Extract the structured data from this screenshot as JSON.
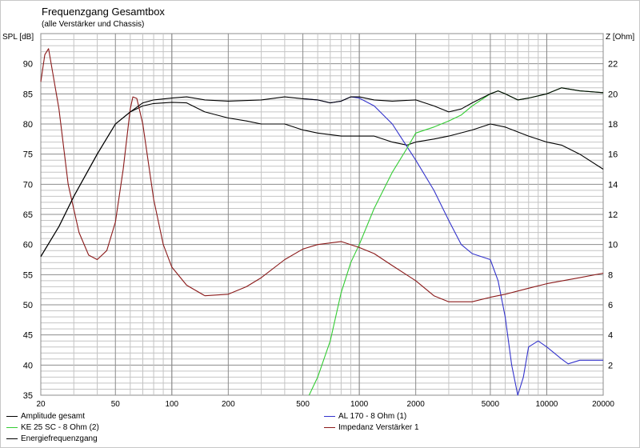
{
  "chart_data": {
    "type": "line",
    "title": "Frequenzgang Gesamtbox",
    "subtitle": "(alle Verstärker und Chassis)",
    "ylabel_left": "SPL [dB]",
    "ylabel_right": "Z [Ohm]",
    "xscale": "log",
    "xlim": [
      20,
      20000
    ],
    "ylim_left": [
      35,
      95
    ],
    "ylim_right": [
      0,
      24
    ],
    "x_ticks": [
      "20",
      "50",
      "100",
      "200",
      "500",
      "1000",
      "2000",
      "5000",
      "10000",
      "20000"
    ],
    "x_tick_values": [
      20,
      50,
      100,
      200,
      500,
      1000,
      2000,
      5000,
      10000,
      20000
    ],
    "y_left_ticks": [
      35,
      40,
      45,
      50,
      55,
      60,
      65,
      70,
      75,
      80,
      85,
      90
    ],
    "y_right_ticks": [
      2,
      4,
      6,
      8,
      10,
      12,
      14,
      16,
      18,
      20,
      22
    ],
    "grid": true,
    "series": [
      {
        "name": "Amplitude gesamt",
        "color": "#000000",
        "axis": "left",
        "points": [
          [
            20,
            58
          ],
          [
            25,
            63
          ],
          [
            30,
            68
          ],
          [
            40,
            75
          ],
          [
            50,
            80
          ],
          [
            60,
            82
          ],
          [
            70,
            83
          ],
          [
            80,
            83.4
          ],
          [
            100,
            83.6
          ],
          [
            120,
            83.5
          ],
          [
            150,
            82
          ],
          [
            200,
            81
          ],
          [
            250,
            80.5
          ],
          [
            300,
            80
          ],
          [
            400,
            80
          ],
          [
            500,
            79
          ],
          [
            600,
            78.5
          ],
          [
            800,
            78
          ],
          [
            1000,
            78
          ],
          [
            1200,
            78
          ],
          [
            1500,
            77
          ],
          [
            1800,
            76.5
          ],
          [
            2000,
            77
          ],
          [
            2500,
            77.5
          ],
          [
            3000,
            78
          ],
          [
            4000,
            79
          ],
          [
            5000,
            80
          ],
          [
            6000,
            79.5
          ],
          [
            8000,
            78
          ],
          [
            10000,
            77
          ],
          [
            12000,
            76.5
          ],
          [
            15000,
            75
          ],
          [
            20000,
            72.5
          ]
        ]
      },
      {
        "name": "AL 170 - 8 Ohm (1)",
        "color": "#3333cc",
        "axis": "left",
        "points": [
          [
            500,
            84.2
          ],
          [
            600,
            84
          ],
          [
            700,
            83.5
          ],
          [
            800,
            83.8
          ],
          [
            900,
            84.5
          ],
          [
            1000,
            84.3
          ],
          [
            1200,
            83
          ],
          [
            1500,
            80
          ],
          [
            2000,
            74
          ],
          [
            2500,
            69
          ],
          [
            3000,
            64
          ],
          [
            3500,
            60
          ],
          [
            4000,
            58.5
          ],
          [
            5000,
            57.5
          ],
          [
            5500,
            54
          ],
          [
            6000,
            48
          ],
          [
            6500,
            40
          ],
          [
            7000,
            35
          ],
          [
            7500,
            38
          ],
          [
            8000,
            43
          ],
          [
            9000,
            44
          ],
          [
            10000,
            43
          ],
          [
            12000,
            41
          ],
          [
            13000,
            40.2
          ],
          [
            15000,
            40.8
          ],
          [
            20000,
            40.8
          ]
        ]
      },
      {
        "name": "KE 25 SC - 8 Ohm    (2)",
        "color": "#33cc33",
        "axis": "left",
        "points": [
          [
            540,
            35
          ],
          [
            600,
            38
          ],
          [
            700,
            44
          ],
          [
            800,
            52
          ],
          [
            900,
            57
          ],
          [
            1000,
            60
          ],
          [
            1200,
            66
          ],
          [
            1500,
            72
          ],
          [
            1800,
            76
          ],
          [
            2000,
            78.5
          ],
          [
            2500,
            79.5
          ],
          [
            3000,
            80.5
          ],
          [
            3500,
            81.5
          ],
          [
            4000,
            83
          ],
          [
            5000,
            85
          ],
          [
            5500,
            85.5
          ],
          [
            6000,
            85
          ],
          [
            7000,
            84
          ],
          [
            8000,
            84.3
          ],
          [
            10000,
            85
          ],
          [
            12000,
            86
          ],
          [
            15000,
            85.5
          ],
          [
            20000,
            85.2
          ]
        ]
      },
      {
        "name": "Impedanz Verstärker 1",
        "color": "#8b1a1a",
        "axis": "right",
        "points": [
          [
            20,
            20.8
          ],
          [
            21,
            22.6
          ],
          [
            22,
            23
          ],
          [
            25,
            19
          ],
          [
            28,
            14
          ],
          [
            32,
            10.8
          ],
          [
            36,
            9.3
          ],
          [
            40,
            9
          ],
          [
            45,
            9.6
          ],
          [
            50,
            11.5
          ],
          [
            55,
            15
          ],
          [
            60,
            19
          ],
          [
            62,
            19.8
          ],
          [
            65,
            19.7
          ],
          [
            70,
            18
          ],
          [
            80,
            13
          ],
          [
            90,
            10
          ],
          [
            100,
            8.5
          ],
          [
            120,
            7.3
          ],
          [
            150,
            6.6
          ],
          [
            200,
            6.7
          ],
          [
            250,
            7.2
          ],
          [
            300,
            7.8
          ],
          [
            400,
            9
          ],
          [
            500,
            9.7
          ],
          [
            600,
            10
          ],
          [
            800,
            10.2
          ],
          [
            1000,
            9.8
          ],
          [
            1200,
            9.4
          ],
          [
            1500,
            8.6
          ],
          [
            2000,
            7.6
          ],
          [
            2500,
            6.6
          ],
          [
            3000,
            6.2
          ],
          [
            4000,
            6.2
          ],
          [
            5000,
            6.5
          ],
          [
            6000,
            6.7
          ],
          [
            8000,
            7.1
          ],
          [
            10000,
            7.4
          ],
          [
            15000,
            7.8
          ],
          [
            20000,
            8.1
          ]
        ]
      },
      {
        "name": "Energiefrequenzgang",
        "color": "#000000",
        "axis": "left",
        "points": [
          [
            20,
            58
          ],
          [
            25,
            63
          ],
          [
            30,
            68
          ],
          [
            40,
            75
          ],
          [
            50,
            80
          ],
          [
            60,
            82
          ],
          [
            70,
            83.5
          ],
          [
            80,
            84
          ],
          [
            100,
            84.3
          ],
          [
            120,
            84.5
          ],
          [
            150,
            84
          ],
          [
            200,
            83.8
          ],
          [
            300,
            84
          ],
          [
            400,
            84.5
          ],
          [
            500,
            84.2
          ],
          [
            600,
            84
          ],
          [
            700,
            83.5
          ],
          [
            800,
            83.8
          ],
          [
            900,
            84.5
          ],
          [
            1000,
            84.5
          ],
          [
            1200,
            84
          ],
          [
            1500,
            83.8
          ],
          [
            2000,
            84
          ],
          [
            2500,
            83
          ],
          [
            3000,
            82
          ],
          [
            3500,
            82.5
          ],
          [
            4000,
            83.5
          ],
          [
            5000,
            85
          ],
          [
            5500,
            85.5
          ],
          [
            6000,
            85
          ],
          [
            7000,
            84
          ],
          [
            8000,
            84.3
          ],
          [
            10000,
            85
          ],
          [
            12000,
            86
          ],
          [
            15000,
            85.5
          ],
          [
            20000,
            85.2
          ]
        ]
      }
    ],
    "legend": [
      {
        "label": "Amplitude gesamt",
        "color": "#000000"
      },
      {
        "label": "AL 170 - 8 Ohm (1)",
        "color": "#3333cc"
      },
      {
        "label": "KE 25 SC - 8 Ohm    (2)",
        "color": "#33cc33"
      },
      {
        "label": "Impedanz Verstärker 1",
        "color": "#8b1a1a"
      },
      {
        "label": "Energiefrequenzgang",
        "color": "#000000"
      }
    ]
  }
}
